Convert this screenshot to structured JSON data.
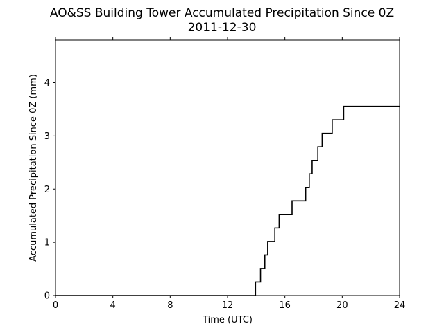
{
  "chart_data": {
    "type": "line",
    "title": "AO&SS Building Tower Accumulated Precipitation Since 0Z",
    "subtitle": "2011-12-30",
    "xlabel": "Time (UTC)",
    "ylabel": "Accumulated Precipitation Since 0Z (mm)",
    "xlim": [
      0,
      24
    ],
    "ylim": [
      0,
      4.8
    ],
    "xticks": [
      0,
      4,
      8,
      12,
      16,
      20,
      24
    ],
    "yticks": [
      0,
      1,
      2,
      3,
      4
    ],
    "grid": false,
    "line_color": "#000000",
    "step": true,
    "x": [
      0,
      13.95,
      14.3,
      14.6,
      14.8,
      15.3,
      15.6,
      16.5,
      17.45,
      17.7,
      17.9,
      18.3,
      18.6,
      19.3,
      20.1,
      24
    ],
    "y": [
      0,
      0.254,
      0.508,
      0.762,
      1.016,
      1.27,
      1.524,
      1.778,
      2.032,
      2.286,
      2.54,
      2.794,
      3.048,
      3.302,
      3.556,
      3.556
    ]
  }
}
